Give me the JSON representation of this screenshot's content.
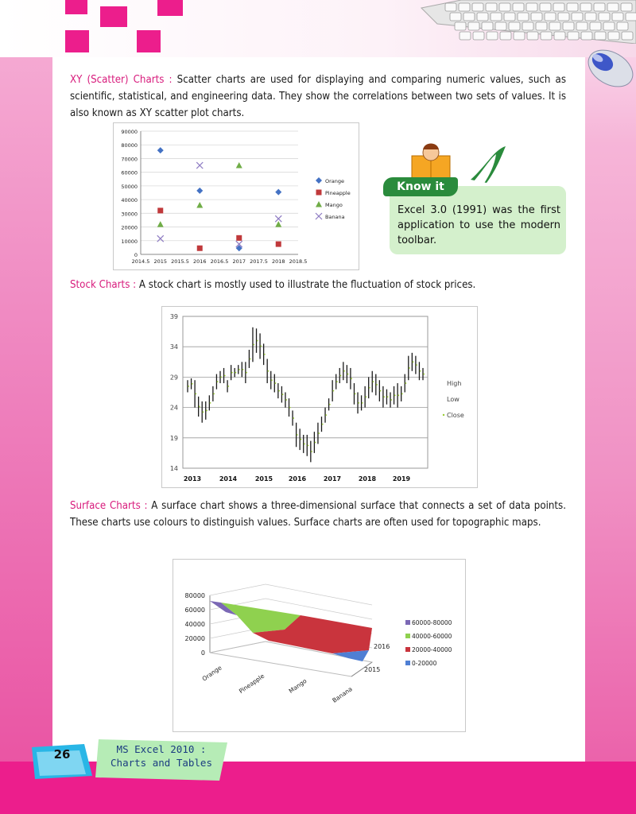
{
  "page": {
    "number": "26",
    "footer_title_line1": "MS Excel 2010 :",
    "footer_title_line2": "Charts and Tables"
  },
  "sections": {
    "xy": {
      "heading": "XY (Scatter) Charts :",
      "body": " Scatter charts are used for displaying and comparing numeric values, such as scientific, statistical, and engineering data. They show the correlations between two sets of values.  It is also known as XY scatter plot charts."
    },
    "stock": {
      "heading": "Stock Charts :",
      "body": "  A stock chart is mostly used to illustrate the fluctuation of stock prices."
    },
    "surface": {
      "heading": "Surface Charts :",
      "body": " A surface chart shows a three-dimensional surface that connects a set of data points. These charts use colours to distinguish values. Surface charts are often used for topographic maps."
    }
  },
  "know_it": {
    "title": "Know it",
    "text": "Excel 3.0 (1991) was the first application to use the modern toolbar."
  },
  "colors": {
    "accent": "#d81b7c",
    "magenta": "#ec1e8c",
    "orange": "#4472c4",
    "pineapple": "#c0393b",
    "mango": "#70ad47",
    "banana": "#8e7cc3"
  },
  "chart_data": [
    {
      "type": "scatter",
      "x_ticks": [
        "2014.5",
        "2015",
        "2015.5",
        "2016",
        "2016.5",
        "2017",
        "2017.5",
        "2018",
        "2018.5"
      ],
      "y_ticks": [
        "0",
        "10000",
        "20000",
        "30000",
        "40000",
        "50000",
        "60000",
        "70000",
        "80000",
        "90000"
      ],
      "xlim": [
        2014.5,
        2018.5
      ],
      "ylim": [
        0,
        90000
      ],
      "series": [
        {
          "name": "Orange",
          "marker": "diamond",
          "color": "#4472c4",
          "points": [
            [
              2015,
              76000
            ],
            [
              2016,
              46500
            ],
            [
              2017,
              4500
            ],
            [
              2018,
              45500
            ]
          ]
        },
        {
          "name": "Pineapple",
          "marker": "square",
          "color": "#c0393b",
          "points": [
            [
              2015,
              32000
            ],
            [
              2016,
              4500
            ],
            [
              2017,
              12000
            ],
            [
              2018,
              7500
            ]
          ]
        },
        {
          "name": "Mango",
          "marker": "triangle",
          "color": "#70ad47",
          "points": [
            [
              2015,
              22000
            ],
            [
              2016,
              36000
            ],
            [
              2017,
              65000
            ],
            [
              2018,
              22000
            ]
          ]
        },
        {
          "name": "Banana",
          "marker": "x",
          "color": "#8e7cc3",
          "points": [
            [
              2015,
              11500
            ],
            [
              2016,
              65000
            ],
            [
              2017,
              7500
            ],
            [
              2018,
              26000
            ]
          ]
        }
      ]
    },
    {
      "type": "stock",
      "y_ticks": [
        "14",
        "19",
        "24",
        "29",
        "34",
        "39"
      ],
      "ylim": [
        14,
        39
      ],
      "x_ticks": [
        "2013",
        "2014",
        "2015",
        "2016",
        "2017",
        "2018",
        "2019"
      ],
      "legend": [
        "High",
        "Low",
        "Close"
      ],
      "bars": [
        [
          28.5,
          26.5
        ],
        [
          28.8,
          27
        ],
        [
          28.5,
          24
        ],
        [
          25.8,
          22.5
        ],
        [
          25,
          21.5
        ],
        [
          25,
          22
        ],
        [
          26,
          23.5
        ],
        [
          27.5,
          25
        ],
        [
          29.5,
          27
        ],
        [
          30,
          28
        ],
        [
          30.5,
          28
        ],
        [
          28.5,
          26.5
        ],
        [
          31,
          28.5
        ],
        [
          30.5,
          29
        ],
        [
          31,
          29.5
        ],
        [
          31.5,
          29
        ],
        [
          31.5,
          28
        ],
        [
          33.5,
          30.5
        ],
        [
          37.2,
          31.5
        ],
        [
          37,
          33
        ],
        [
          36.2,
          32
        ],
        [
          34.5,
          31
        ],
        [
          32,
          28
        ],
        [
          30,
          27
        ],
        [
          29.5,
          26.5
        ],
        [
          28,
          25.5
        ],
        [
          27.5,
          24.8
        ],
        [
          26.5,
          24
        ],
        [
          25.5,
          22.5
        ],
        [
          23.5,
          21
        ],
        [
          21.5,
          17.5
        ],
        [
          20.5,
          17
        ],
        [
          19.5,
          16.5
        ],
        [
          19.5,
          16
        ],
        [
          18.5,
          15
        ],
        [
          20,
          16.5
        ],
        [
          21.5,
          18
        ],
        [
          22.5,
          20
        ],
        [
          24,
          21.5
        ],
        [
          25.5,
          23.5
        ],
        [
          28.5,
          25
        ],
        [
          29.5,
          27
        ],
        [
          30.5,
          28
        ],
        [
          31.5,
          28.5
        ],
        [
          31,
          28
        ],
        [
          30.5,
          27
        ],
        [
          28,
          24.5
        ],
        [
          26.5,
          23
        ],
        [
          26,
          23.5
        ],
        [
          27.5,
          24
        ],
        [
          29,
          25.5
        ],
        [
          30,
          26.5
        ],
        [
          29.5,
          26
        ],
        [
          28.5,
          25
        ],
        [
          27.5,
          24
        ],
        [
          27,
          24.5
        ],
        [
          26.5,
          24
        ],
        [
          27.5,
          24.5
        ],
        [
          28,
          24
        ],
        [
          27.5,
          25
        ],
        [
          29.5,
          26.5
        ],
        [
          32.5,
          28.5
        ],
        [
          33,
          30
        ],
        [
          32.5,
          29.5
        ],
        [
          31.5,
          28.5
        ],
        [
          30.5,
          28.5
        ]
      ]
    },
    {
      "type": "surface",
      "y_ticks": [
        "0",
        "20000",
        "40000",
        "60000",
        "80000"
      ],
      "categories": [
        "Orange",
        "Pineapple",
        "Mango",
        "Banana"
      ],
      "depth_labels": [
        "2015",
        "2016"
      ],
      "legend": [
        {
          "label": "60000-80000",
          "color": "#7b68b5"
        },
        {
          "label": "40000-60000",
          "color": "#8fd14f"
        },
        {
          "label": "20000-40000",
          "color": "#c9343d"
        },
        {
          "label": "0-20000",
          "color": "#4f7fd4"
        }
      ]
    }
  ]
}
